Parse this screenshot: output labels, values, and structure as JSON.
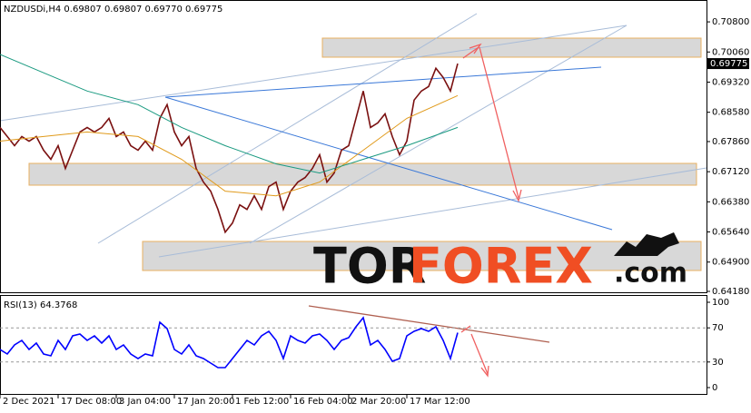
{
  "chart_data": [
    {
      "type": "line",
      "title": "NZDUSDi,H4  0.69807 0.69807 0.69770 0.69775",
      "current_price": 0.69775,
      "xlim": [
        0,
        97.25
      ],
      "ylim": [
        0.64158,
        0.71337
      ],
      "yticks": [
        {
          "value": 0.708,
          "label": "0.70800"
        },
        {
          "value": 0.7006,
          "label": "0.70060"
        },
        {
          "value": 0.6932,
          "label": "0.69320"
        },
        {
          "value": 0.6858,
          "label": "0.68580"
        },
        {
          "value": 0.6786,
          "label": "0.67860"
        },
        {
          "value": 0.6712,
          "label": "0.67120"
        },
        {
          "value": 0.6638,
          "label": "0.66380"
        },
        {
          "value": 0.6564,
          "label": "0.65640"
        },
        {
          "value": 0.649,
          "label": "0.64900"
        },
        {
          "value": 0.6418,
          "label": "0.64180"
        }
      ],
      "series": [
        {
          "color": "#7a1010",
          "values": [
            0.68207,
            0.67983,
            0.67759,
            0.67983,
            0.67871,
            0.67983,
            0.67648,
            0.67424,
            0.67759,
            0.672,
            0.67648,
            0.68095,
            0.68207,
            0.68095,
            0.68207,
            0.6843,
            0.67983,
            0.68095,
            0.67759,
            0.67648,
            0.67871,
            0.67648,
            0.6843,
            0.68766,
            0.68095,
            0.67759,
            0.67983,
            0.672,
            0.66865,
            0.66641,
            0.66194,
            0.65635,
            0.65859,
            0.66306,
            0.66194,
            0.66529,
            0.66194,
            0.66753,
            0.66865,
            0.66194,
            0.66641,
            0.66865,
            0.66977,
            0.672,
            0.67536,
            0.66865,
            0.67088,
            0.67648,
            0.67759,
            0.6843,
            0.69101,
            0.68207,
            0.68318,
            0.68542,
            0.67983,
            0.67536,
            0.67871,
            0.68877,
            0.69101,
            0.69213,
            0.6966,
            0.69436,
            0.69101,
            0.69775
          ]
        },
        {
          "color": "#e09a1a",
          "x": [
            0,
            6,
            12,
            19,
            25,
            31,
            38,
            44,
            50,
            56,
            63
          ],
          "values": [
            0.67871,
            0.67983,
            0.68095,
            0.67983,
            0.67424,
            0.66641,
            0.66529,
            0.66865,
            0.67648,
            0.6843,
            0.68989
          ]
        },
        {
          "color": "#1a9a80",
          "x": [
            0,
            6,
            12,
            19,
            25,
            31,
            38,
            44,
            50,
            56,
            63
          ],
          "values": [
            0.7,
            0.69548,
            0.69101,
            0.68766,
            0.68207,
            0.67759,
            0.67312,
            0.67088,
            0.67424,
            0.67759,
            0.68207
          ]
        }
      ]
    },
    {
      "type": "line",
      "title": "RSI(13) 64.3768",
      "xlim": [
        0,
        97.25
      ],
      "ylim": [
        -8.5,
        108.5
      ],
      "yticks": [
        100,
        70,
        30,
        0
      ],
      "grid_levels": [
        70,
        30
      ],
      "xticks": [
        {
          "value": 0,
          "label": "2 Dec 2021"
        },
        {
          "value": 8,
          "label": "17 Dec 08:00"
        },
        {
          "value": 16,
          "label": "3 Jan 04:00"
        },
        {
          "value": 24,
          "label": "17 Jan 20:00"
        },
        {
          "value": 32,
          "label": "1 Feb 12:00"
        },
        {
          "value": 40,
          "label": "16 Feb 04:00"
        },
        {
          "value": 48,
          "label": "2 Mar 20:00"
        },
        {
          "value": 56,
          "label": "17 Mar 12:00"
        }
      ],
      "series": [
        {
          "color": "#0000ff",
          "values": [
            44.7,
            39.4,
            50.0,
            55.3,
            44.7,
            52.1,
            39.4,
            37.2,
            55.3,
            44.7,
            60.6,
            62.8,
            55.3,
            60.6,
            52.1,
            60.6,
            44.7,
            50.0,
            39.4,
            34.0,
            39.4,
            37.2,
            76.6,
            69.1,
            44.7,
            39.4,
            50.0,
            37.2,
            34.0,
            28.7,
            23.4,
            23.4,
            34.0,
            44.7,
            55.3,
            50.0,
            60.6,
            66.0,
            55.3,
            34.0,
            60.6,
            55.3,
            52.1,
            60.6,
            62.8,
            55.3,
            44.7,
            55.3,
            58.5,
            71.3,
            81.9,
            50.0,
            55.3,
            44.7,
            30.9,
            34.0,
            60.6,
            66.0,
            69.1,
            66.0,
            71.3,
            55.3,
            34.0,
            64.4
          ]
        }
      ]
    }
  ],
  "watermark": {
    "part1": "TOR",
    "part2": "FOREX",
    "part3": ".com"
  }
}
